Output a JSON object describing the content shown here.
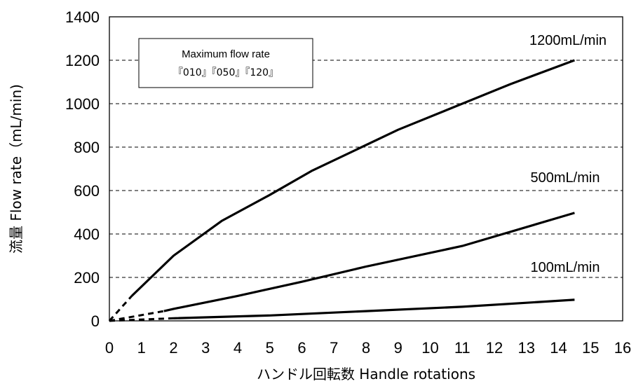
{
  "chart_data": {
    "type": "line",
    "title": "",
    "xlabel": "ハンドル回転数 Handle rotations",
    "ylabel": "流量 Flow rate（mL/min)",
    "xlim": [
      0,
      16
    ],
    "ylim": [
      0,
      1400
    ],
    "x_ticks": [
      "0",
      "1",
      "2",
      "3",
      "4",
      "5",
      "6",
      "7",
      "8",
      "9",
      "10",
      "11",
      "12",
      "13",
      "14",
      "15",
      "16"
    ],
    "y_ticks": [
      "0",
      "200",
      "400",
      "600",
      "800",
      "1000",
      "1200",
      "1400"
    ],
    "grid": "horizontal dashed",
    "legend_box": {
      "line1": "Maximum flow rate",
      "line2": "『010』『050』『120』"
    },
    "series": [
      {
        "dashed_points": [
          [
            0,
            0
          ],
          [
            0.7,
            115
          ]
        ],
        "solid_points": [
          [
            0.7,
            115
          ],
          [
            2,
            300
          ],
          [
            3.5,
            460
          ],
          [
            5,
            580
          ],
          [
            6.3,
            690
          ],
          [
            9,
            880
          ],
          [
            11,
            1000
          ],
          [
            12.5,
            1090
          ],
          [
            14.5,
            1200
          ]
        ],
        "annotation": "1200mL/min"
      },
      {
        "dashed_points": [
          [
            0,
            0
          ],
          [
            1.7,
            45
          ]
        ],
        "solid_points": [
          [
            1.7,
            45
          ],
          [
            2,
            55
          ],
          [
            4,
            115
          ],
          [
            6,
            180
          ],
          [
            8,
            250
          ],
          [
            11,
            345
          ],
          [
            14.5,
            497
          ]
        ],
        "annotation": "500mL/min"
      },
      {
        "dashed_points": [
          [
            0,
            0
          ],
          [
            2,
            12
          ]
        ],
        "solid_points": [
          [
            2,
            12
          ],
          [
            5,
            25
          ],
          [
            8,
            45
          ],
          [
            11,
            65
          ],
          [
            14.5,
            97
          ]
        ],
        "annotation": "100mL/min"
      }
    ]
  }
}
